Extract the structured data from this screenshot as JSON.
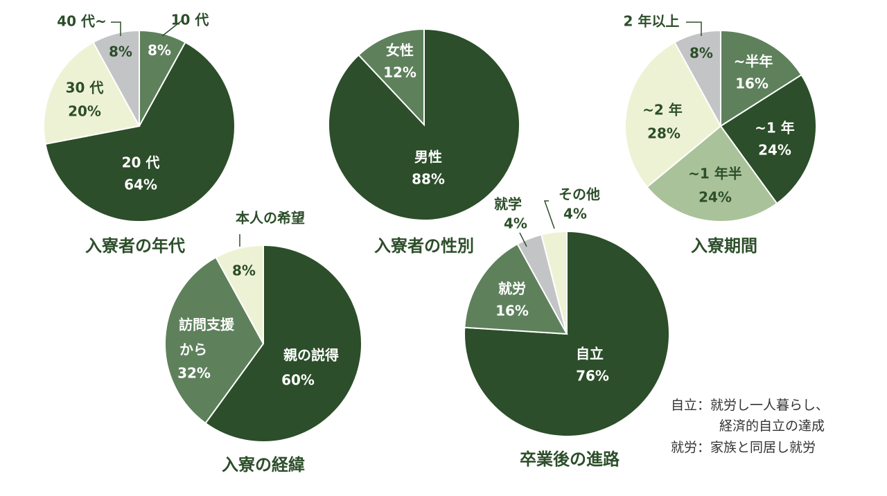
{
  "colors": {
    "dark_green": "#2c4e2a",
    "mid_green": "#5e815c",
    "light_green": "#a9c29a",
    "cream": "#eef2d4",
    "gray": "#c3c4c6",
    "title": "#2c4e2a",
    "leader": "#2c4e2a"
  },
  "chart_data": [
    {
      "type": "pie",
      "title": "入寮者の年代",
      "slices": [
        {
          "label": "10 代",
          "value": 8,
          "text": "8%",
          "color": "#5e815c"
        },
        {
          "label": "20 代",
          "value": 64,
          "text": "64%",
          "color": "#2c4e2a"
        },
        {
          "label": "30 代",
          "value": 20,
          "text": "20%",
          "color": "#eef2d4"
        },
        {
          "label": "40 代~",
          "value": 8,
          "text": "8%",
          "color": "#c3c4c6"
        }
      ]
    },
    {
      "type": "pie",
      "title": "入寮者の性別",
      "slices": [
        {
          "label": "男性",
          "value": 88,
          "text": "88%",
          "color": "#2c4e2a"
        },
        {
          "label": "女性",
          "value": 12,
          "text": "12%",
          "color": "#5e815c"
        }
      ]
    },
    {
      "type": "pie",
      "title": "入寮期間",
      "slices": [
        {
          "label": "~半年",
          "value": 16,
          "text": "16%",
          "color": "#5e815c"
        },
        {
          "label": "~1 年",
          "value": 24,
          "text": "24%",
          "color": "#2c4e2a"
        },
        {
          "label": "~1 年半",
          "value": 24,
          "text": "24%",
          "color": "#a9c29a"
        },
        {
          "label": "~2 年",
          "value": 28,
          "text": "28%",
          "color": "#eef2d4"
        },
        {
          "label": "2 年以上",
          "value": 8,
          "text": "8%",
          "color": "#c3c4c6"
        }
      ]
    },
    {
      "type": "pie",
      "title": "入寮の経緯",
      "slices": [
        {
          "label": "親の説得",
          "value": 60,
          "text": "60%",
          "color": "#2c4e2a"
        },
        {
          "label": "訪問支援から",
          "value": 32,
          "text": "32%",
          "color": "#5e815c"
        },
        {
          "label": "本人の希望",
          "value": 8,
          "text": "8%",
          "color": "#eef2d4"
        }
      ]
    },
    {
      "type": "pie",
      "title": "卒業後の進路",
      "slices": [
        {
          "label": "自立",
          "value": 76,
          "text": "76%",
          "color": "#2c4e2a"
        },
        {
          "label": "就労",
          "value": 16,
          "text": "16%",
          "color": "#5e815c"
        },
        {
          "label": "就学",
          "value": 4,
          "text": "4%",
          "color": "#c3c4c6"
        },
        {
          "label": "その他",
          "value": 4,
          "text": "4%",
          "color": "#eef2d4"
        }
      ]
    }
  ],
  "notes": {
    "line1": "自立：就労し一人暮らし、",
    "line2": "経済的自立の達成",
    "line3": "就労：家族と同居し就労"
  }
}
